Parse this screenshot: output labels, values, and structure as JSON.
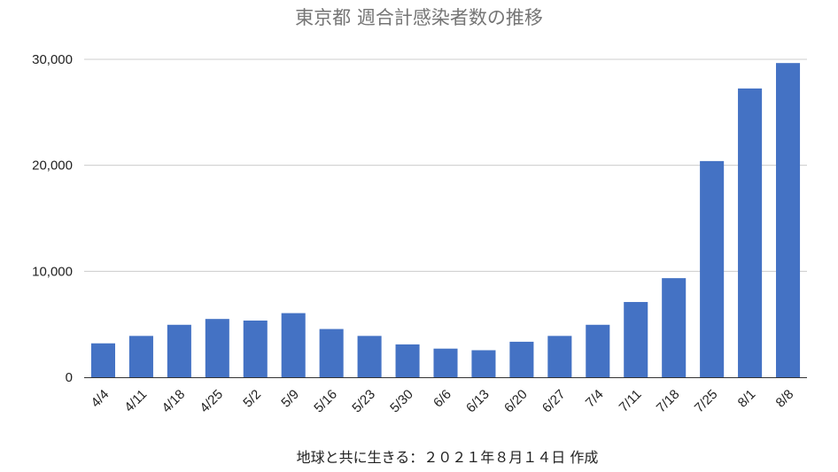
{
  "chart_data": {
    "type": "bar",
    "title": "東京都 週合計感染者数の推移",
    "xlabel": "地球と共に生きる：２０２１年８月１４日 作成",
    "ylabel": "",
    "ylim": [
      0,
      30000
    ],
    "yticks": [
      0,
      10000,
      20000,
      30000
    ],
    "ytick_labels": [
      "0",
      "10,000",
      "20,000",
      "30,000"
    ],
    "grid": true,
    "bar_color": "#4472c4",
    "categories": [
      "4/4",
      "4/11",
      "4/18",
      "4/25",
      "5/2",
      "5/9",
      "5/16",
      "5/23",
      "5/30",
      "6/6",
      "6/13",
      "6/20",
      "6/27",
      "7/4",
      "7/11",
      "7/18",
      "7/25",
      "8/1",
      "8/8"
    ],
    "values": [
      3200,
      3900,
      4950,
      5500,
      5350,
      6050,
      4550,
      3900,
      3100,
      2700,
      2550,
      3350,
      3900,
      4950,
      7100,
      9350,
      20400,
      27250,
      29650
    ]
  }
}
